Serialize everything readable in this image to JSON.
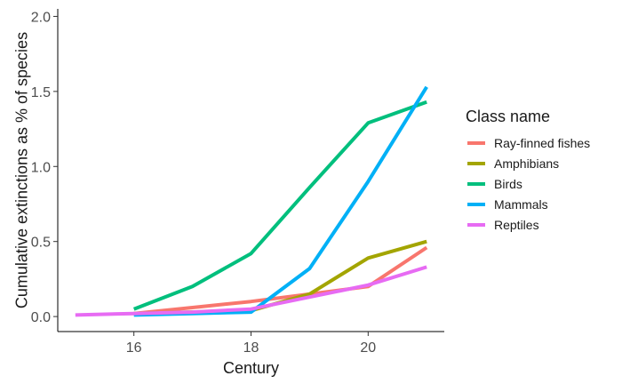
{
  "chart_data": {
    "type": "line",
    "title": "",
    "xlabel": "Century",
    "ylabel": "Cumulative extinctions as % of species",
    "xlim": [
      14.7,
      21.3
    ],
    "ylim": [
      -0.1,
      2.05
    ],
    "x_ticks": [
      16,
      18,
      20
    ],
    "x_tick_labels": [
      "16",
      "18",
      "20"
    ],
    "y_ticks": [
      0.0,
      0.5,
      1.0,
      1.5,
      2.0
    ],
    "y_tick_labels": [
      "0.0",
      "0.5",
      "1.0",
      "1.5",
      "2.0"
    ],
    "grid": false,
    "legend": {
      "title": "Class name",
      "position": "right"
    },
    "series": [
      {
        "name": "Ray-finned fishes",
        "color": "#F8766D",
        "points": [
          [
            16,
            0.02
          ],
          [
            17,
            0.06
          ],
          [
            18,
            0.1
          ],
          [
            19,
            0.15
          ],
          [
            20,
            0.2
          ],
          [
            21,
            0.46
          ]
        ]
      },
      {
        "name": "Amphibians",
        "color": "#A3A500",
        "points": [
          [
            16,
            0.02
          ],
          [
            17,
            0.03
          ],
          [
            18,
            0.04
          ],
          [
            19,
            0.15
          ],
          [
            20,
            0.39
          ],
          [
            21,
            0.5
          ]
        ]
      },
      {
        "name": "Birds",
        "color": "#00BF7D",
        "points": [
          [
            16,
            0.05
          ],
          [
            17,
            0.2
          ],
          [
            18,
            0.42
          ],
          [
            19,
            0.86
          ],
          [
            20,
            1.29
          ],
          [
            21,
            1.43
          ]
        ]
      },
      {
        "name": "Mammals",
        "color": "#00B0F6",
        "points": [
          [
            16,
            0.01
          ],
          [
            17,
            0.02
          ],
          [
            18,
            0.03
          ],
          [
            19,
            0.32
          ],
          [
            20,
            0.9
          ],
          [
            21,
            1.53
          ]
        ]
      },
      {
        "name": "Reptiles",
        "color": "#E76BF3",
        "points": [
          [
            15,
            0.01
          ],
          [
            16,
            0.02
          ],
          [
            17,
            0.03
          ],
          [
            18,
            0.05
          ],
          [
            19,
            0.13
          ],
          [
            20,
            0.21
          ],
          [
            21,
            0.33
          ]
        ]
      }
    ]
  }
}
